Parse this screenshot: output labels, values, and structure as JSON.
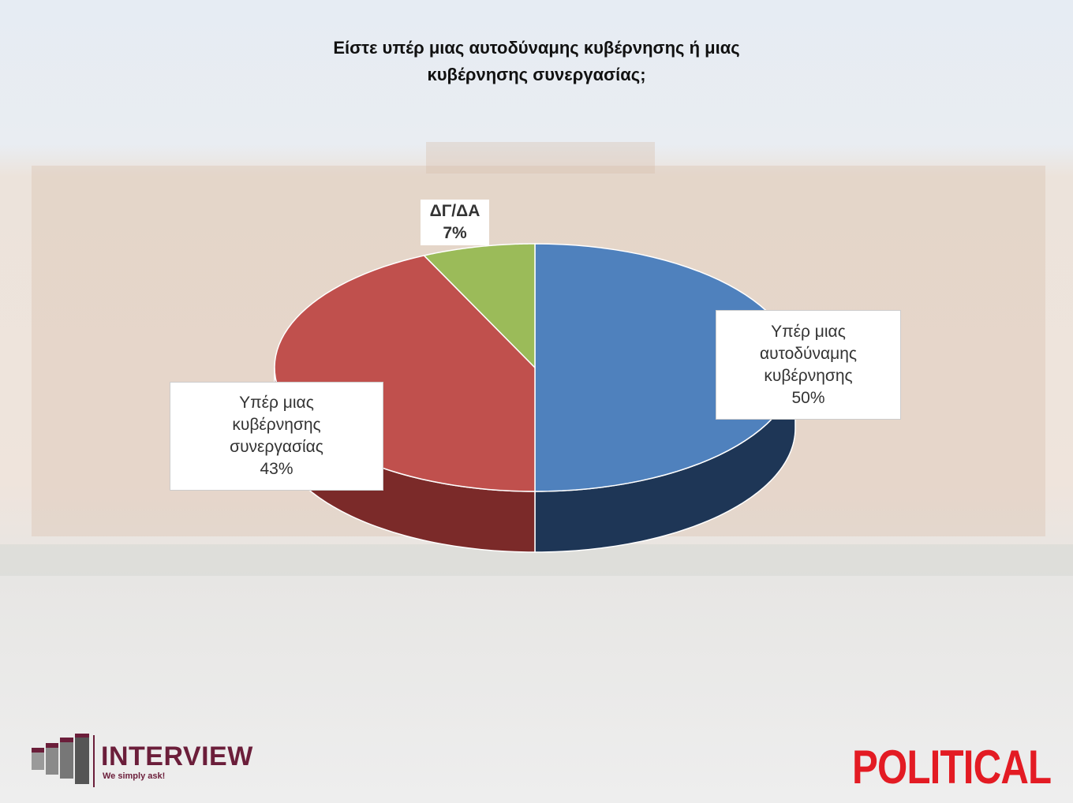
{
  "chart_data": {
    "type": "pie",
    "style": "3d",
    "title": "Είστε υπέρ μιας αυτοδύναμης κυβέρνησης ή μιας κυβέρνησης συνεργασίας;",
    "title_lines": [
      "Είστε υπέρ μιας αυτοδύναμης κυβέρνησης ή μιας",
      "κυβέρνησης συνεργασίας;"
    ],
    "slices": [
      {
        "label_lines": [
          "Υπέρ μιας",
          "αυτοδύναμης",
          "κυβέρνησης"
        ],
        "value": 50,
        "value_label": "50%",
        "color": "#4f81bd",
        "side_color": "#1e3656"
      },
      {
        "label_lines": [
          "Υπέρ μιας",
          "κυβέρνησης",
          "συνεργασίας"
        ],
        "value": 43,
        "value_label": "43%",
        "color": "#c0504d",
        "side_color": "#7b2a29"
      },
      {
        "label_lines": [
          "ΔΓ/ΔΑ"
        ],
        "value": 7,
        "value_label": "7%",
        "color": "#9bbb59",
        "side_color": "#5f7a2e"
      }
    ]
  },
  "logos": {
    "interview": {
      "name": "INTERVIEW",
      "tagline": "We simply ask!",
      "color": "#6b1e3a"
    },
    "political": {
      "name": "POLITICAL",
      "color": "#e31b23"
    }
  }
}
